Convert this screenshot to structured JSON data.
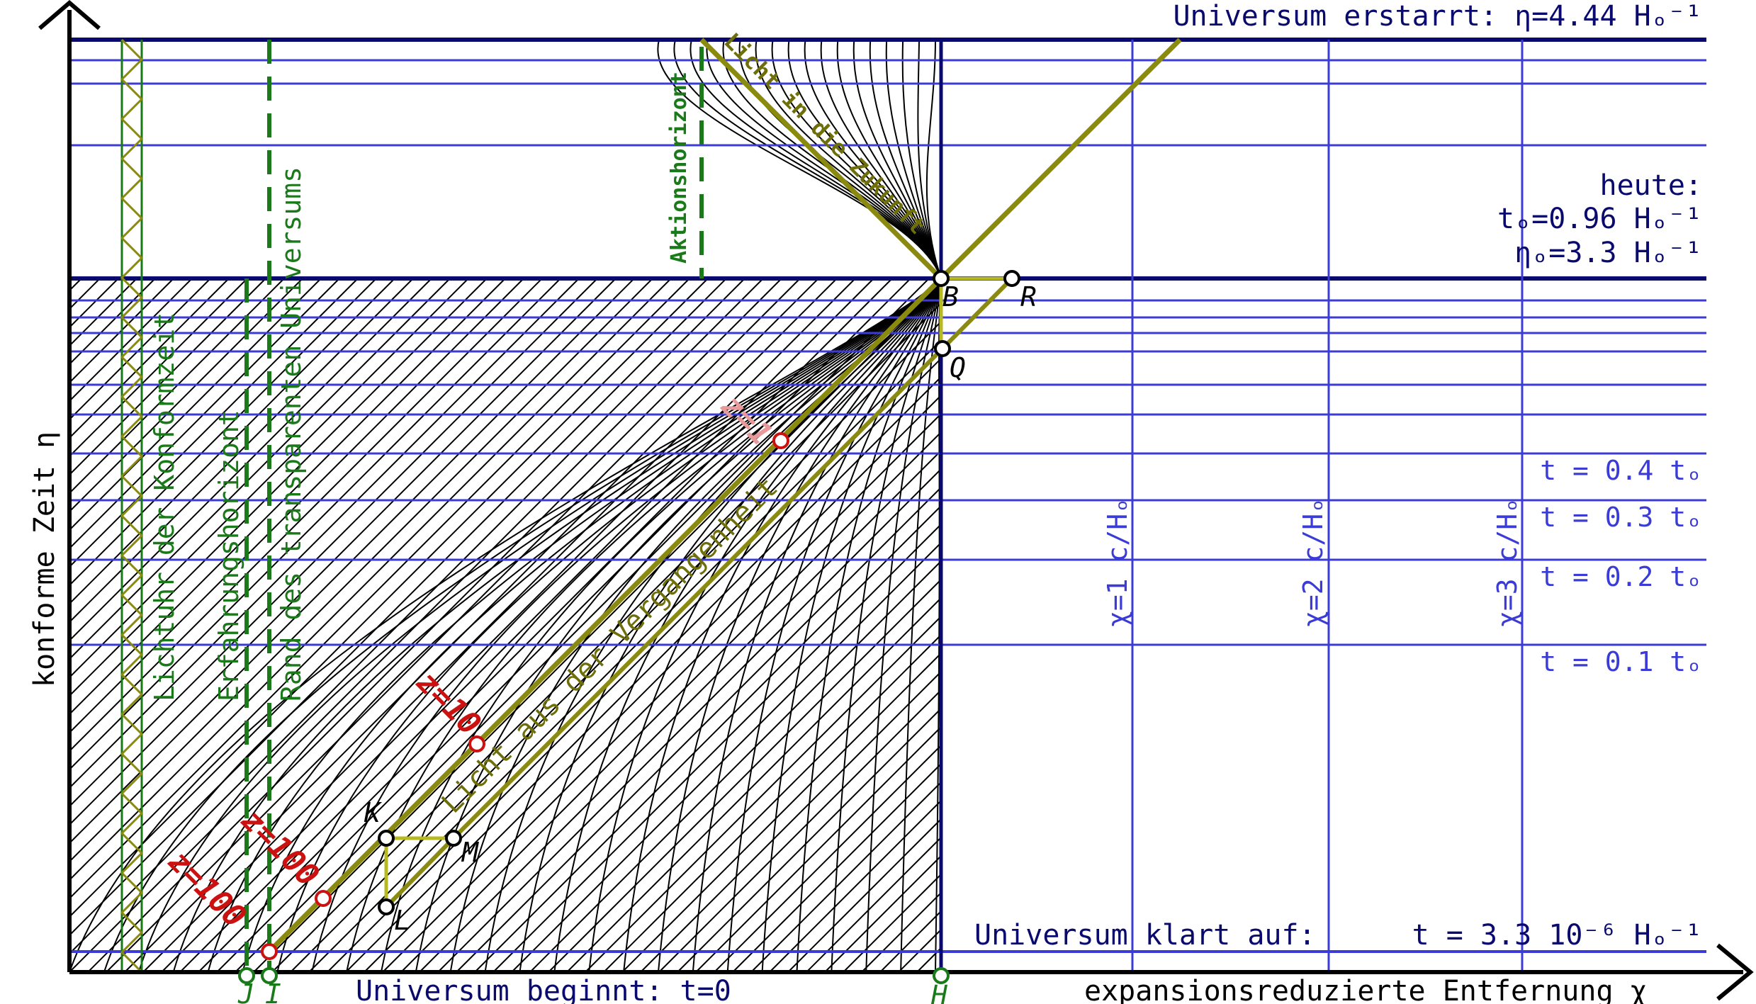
{
  "labels": {
    "top": "Universum erstarrt: η=4.44 Hₒ⁻¹",
    "today_1": "heute:",
    "today_2": "tₒ=0.96 Hₒ⁻¹",
    "today_3": "ηₒ=3.3 Hₒ⁻¹",
    "t04": "t = 0.4 tₒ",
    "t03": "t = 0.3 tₒ",
    "t02": "t = 0.2 tₒ",
    "t01": "t = 0.1 tₒ",
    "chi1": "χ=1 c/Hₒ",
    "chi2": "χ=2 c/Hₒ",
    "chi3": "χ=3 c/Hₒ",
    "klart_left": "Universum klart auf:",
    "klart_right": "t = 3.3 10⁻⁶ Hₒ⁻¹",
    "beginnt": "Universum beginnt: t=0",
    "xaxis": "expansionsreduzierte Entfernung χ",
    "yaxis": "konforme Zeit η",
    "lichtuhr": "Lichtuhr der Konformzeit",
    "erfahrung": "Erfahrungshorizont",
    "rand": "Rand des transparenten Universums",
    "aktion": "Aktionshorizont",
    "zukunft": "Licht in die Zukunft",
    "vergangenheit": "Licht aus der Vergangenheit",
    "z1": "z=1",
    "z10": "z=10",
    "z100a": "z=100",
    "z100b": "z=100"
  },
  "points": {
    "B": "B",
    "R": "R",
    "Q": "Q",
    "K": "K",
    "L": "L",
    "M": "M",
    "H": "H",
    "J": "J",
    "I": "I"
  },
  "colors": {
    "navy": "#0a0a6e",
    "blue": "#3b3bd6",
    "olive": "#8a8a10",
    "green": "#1a7a1a",
    "red": "#cc1111"
  }
}
